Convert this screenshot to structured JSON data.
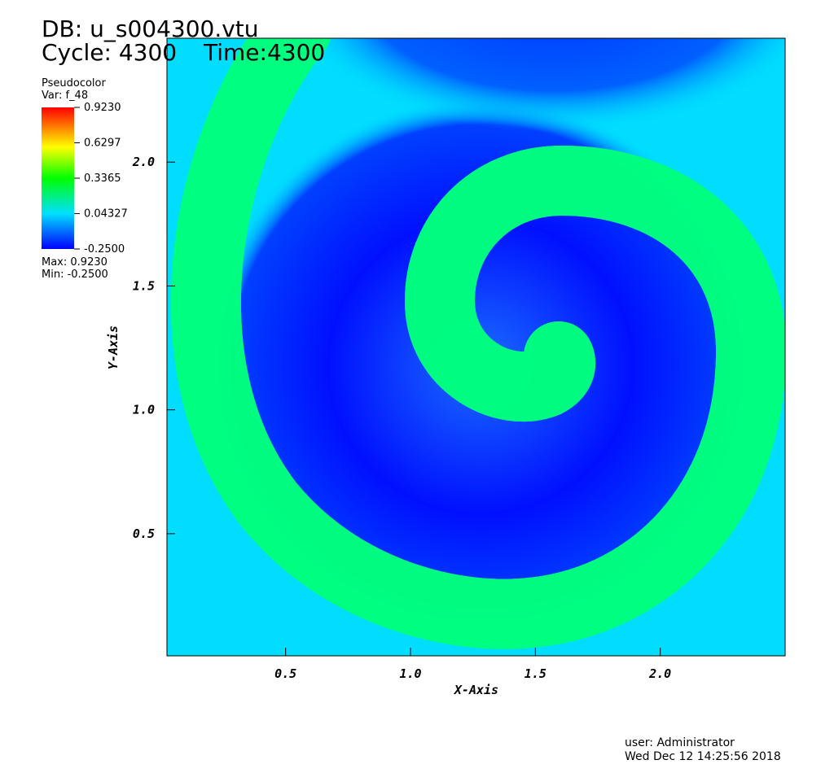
{
  "header": {
    "db": "DB: u_s004300.vtu",
    "cycle": "Cycle: 4300",
    "time": "Time:4300"
  },
  "legend": {
    "plot": "Pseudocolor",
    "var": "Var: f_48",
    "lim": [
      -0.25,
      0.923
    ],
    "ticks": [
      {
        "value": 0.923,
        "label": "0.9230"
      },
      0.6297,
      0.3365,
      0.04327,
      {
        "value": -0.25,
        "label": "-0.2500"
      }
    ],
    "max": "Max:  0.9230",
    "min": "Min: -0.2500"
  },
  "axes": {
    "x": {
      "title": "X-Axis",
      "lim": [
        0.025,
        2.5
      ],
      "ticks": [
        0.5,
        {
          "value": 1,
          "label": "1.0"
        },
        1.5,
        {
          "value": 2,
          "label": "2.0"
        }
      ]
    },
    "y": {
      "title": "Y-Axis",
      "lim": [
        0.007,
        2.5
      ],
      "ticks": [
        0.5,
        {
          "value": 1,
          "label": "1.0"
        },
        1.5,
        {
          "value": 2,
          "label": "2.0"
        }
      ]
    }
  },
  "footer": {
    "user": "user: Administrator",
    "date": "Wed Dec 12 14:25:56 2018"
  }
}
